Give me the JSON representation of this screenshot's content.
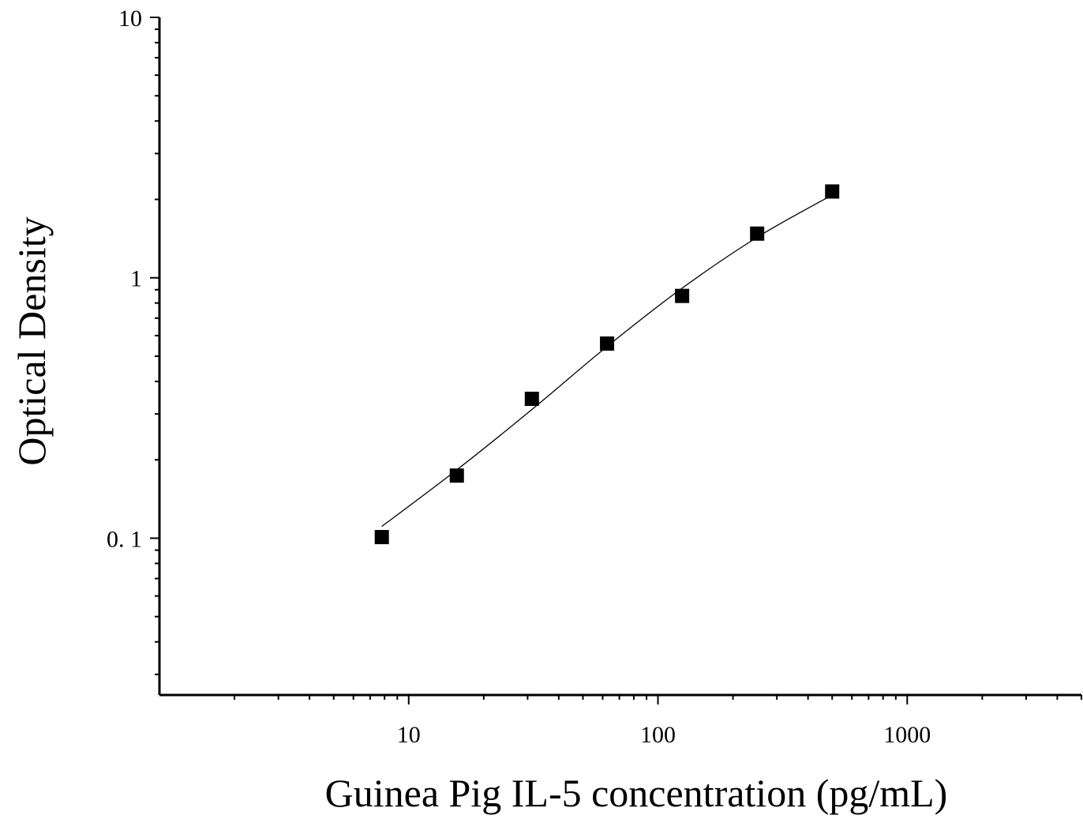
{
  "chart_data": {
    "type": "scatter",
    "title": "",
    "xlabel": "Guinea Pig IL-5 concentration (pg/mL)",
    "ylabel": "Optical Density",
    "x_scale": "log",
    "y_scale": "log",
    "xlim": [
      1,
      5000
    ],
    "ylim": [
      0.025,
      10
    ],
    "x_ticks": [
      {
        "value": 10,
        "label": "10"
      },
      {
        "value": 100,
        "label": "100"
      },
      {
        "value": 1000,
        "label": "1000"
      }
    ],
    "y_ticks": [
      {
        "value": 10,
        "label": "10"
      },
      {
        "value": 1,
        "label": "1"
      },
      {
        "value": 0.1,
        "label": "0. 1"
      }
    ],
    "grid": false,
    "legend": "none",
    "series": [
      {
        "marker": "square",
        "color": "#000000",
        "points": [
          {
            "x": 7.8,
            "y": 0.101
          },
          {
            "x": 15.6,
            "y": 0.174
          },
          {
            "x": 31.2,
            "y": 0.343
          },
          {
            "x": 62.5,
            "y": 0.559
          },
          {
            "x": 125,
            "y": 0.852
          },
          {
            "x": 250,
            "y": 1.478
          },
          {
            "x": 500,
            "y": 2.145
          }
        ]
      }
    ],
    "fit_curve": {
      "color": "#000000",
      "points": [
        {
          "x": 7.8,
          "y": 0.111
        },
        {
          "x": 15.6,
          "y": 0.183
        },
        {
          "x": 31.2,
          "y": 0.312
        },
        {
          "x": 62.5,
          "y": 0.545
        },
        {
          "x": 125,
          "y": 0.912
        },
        {
          "x": 250,
          "y": 1.43
        },
        {
          "x": 500,
          "y": 2.08
        }
      ]
    }
  }
}
